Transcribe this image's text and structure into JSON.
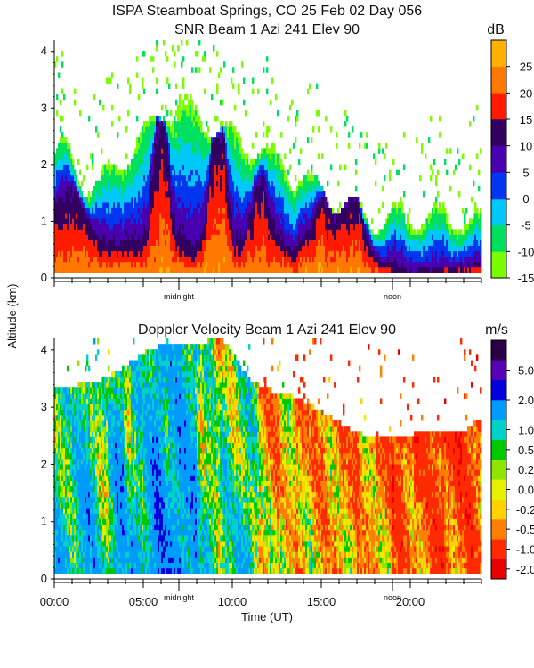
{
  "chart_data": [
    {
      "type": "heatmap",
      "title": "ISPA Steamboat Springs, CO  25 Feb 02 Day 056",
      "subtitle": "SNR Beam 1 Azi 241 Elev 90",
      "ylabel": "Altitude (km)",
      "ylim": [
        0,
        4.2
      ],
      "yticks": [
        "0",
        "1",
        "2",
        "3",
        "4"
      ],
      "xlim": [
        0,
        24
      ],
      "x_annotations": [
        {
          "label": "midnight",
          "hour": 7
        },
        {
          "label": "noon",
          "hour": 19
        }
      ],
      "colorbar": {
        "unit": "dB",
        "tick_labels": [
          "25",
          "20",
          "15",
          "10",
          "5",
          "0",
          "-5",
          "-10",
          "-15"
        ],
        "bins": [
          {
            "lo": -15,
            "hi": -12.5,
            "color": "#7CFC00"
          },
          {
            "lo": -12.5,
            "hi": -7.5,
            "color": "#00E060"
          },
          {
            "lo": -7.5,
            "hi": -2.5,
            "color": "#00C8F8"
          },
          {
            "lo": -2.5,
            "hi": 2.5,
            "color": "#0036F0"
          },
          {
            "lo": 2.5,
            "hi": 7.5,
            "color": "#4800B0"
          },
          {
            "lo": 7.5,
            "hi": 12.5,
            "color": "#32005E"
          },
          {
            "lo": 12.5,
            "hi": 17.5,
            "color": "#FF1A00"
          },
          {
            "lo": 17.5,
            "hi": 22.5,
            "color": "#FF7800"
          },
          {
            "lo": 22.5,
            "hi": 30,
            "color": "#FFB000"
          }
        ]
      }
    },
    {
      "type": "heatmap",
      "title": "Doppler Velocity Beam 1 Azi 241 Elev 90",
      "ylabel": "Altitude (km)",
      "xlabel": "Time (UT)",
      "ylim": [
        0,
        4.2
      ],
      "yticks": [
        "0",
        "1",
        "2",
        "3",
        "4"
      ],
      "xlim": [
        0,
        24
      ],
      "xticks": [
        {
          "label": "00:00",
          "hour": 0
        },
        {
          "label": "05:00",
          "hour": 5
        },
        {
          "label": "10:00",
          "hour": 10
        },
        {
          "label": "15:00",
          "hour": 15
        },
        {
          "label": "20:00",
          "hour": 20
        }
      ],
      "x_annotations": [
        {
          "label": "midnight",
          "hour": 7
        },
        {
          "label": "noon",
          "hour": 19
        }
      ],
      "colorbar": {
        "unit": "m/s",
        "tick_labels": [
          "5.0",
          "2.0",
          "1.0",
          "0.5",
          "0.2",
          "0.0",
          "-0.2",
          "-0.5",
          "-1.0",
          "-2.0"
        ],
        "bins": [
          {
            "label": "< -2.0",
            "color": "#E80000"
          },
          {
            "label": "-2.0 to -1.0",
            "color": "#FF2A00"
          },
          {
            "label": "-1.0 to -0.5",
            "color": "#FF8000"
          },
          {
            "label": "-0.5 to -0.2",
            "color": "#FFD200"
          },
          {
            "label": "-0.2 to 0.0",
            "color": "#E6F000"
          },
          {
            "label": "0.0 to 0.2",
            "color": "#8CE600"
          },
          {
            "label": "0.2 to 0.5",
            "color": "#00C800"
          },
          {
            "label": "0.5 to 1.0",
            "color": "#00D2C8"
          },
          {
            "label": "1.0 to 2.0",
            "color": "#009BFF"
          },
          {
            "label": "2.0 to 5.0",
            "color": "#0000DC"
          },
          {
            "label": "5.0 +",
            "color": "#5A00B4"
          },
          {
            "label": "5.0 ++",
            "color": "#2A0046"
          }
        ]
      }
    }
  ]
}
